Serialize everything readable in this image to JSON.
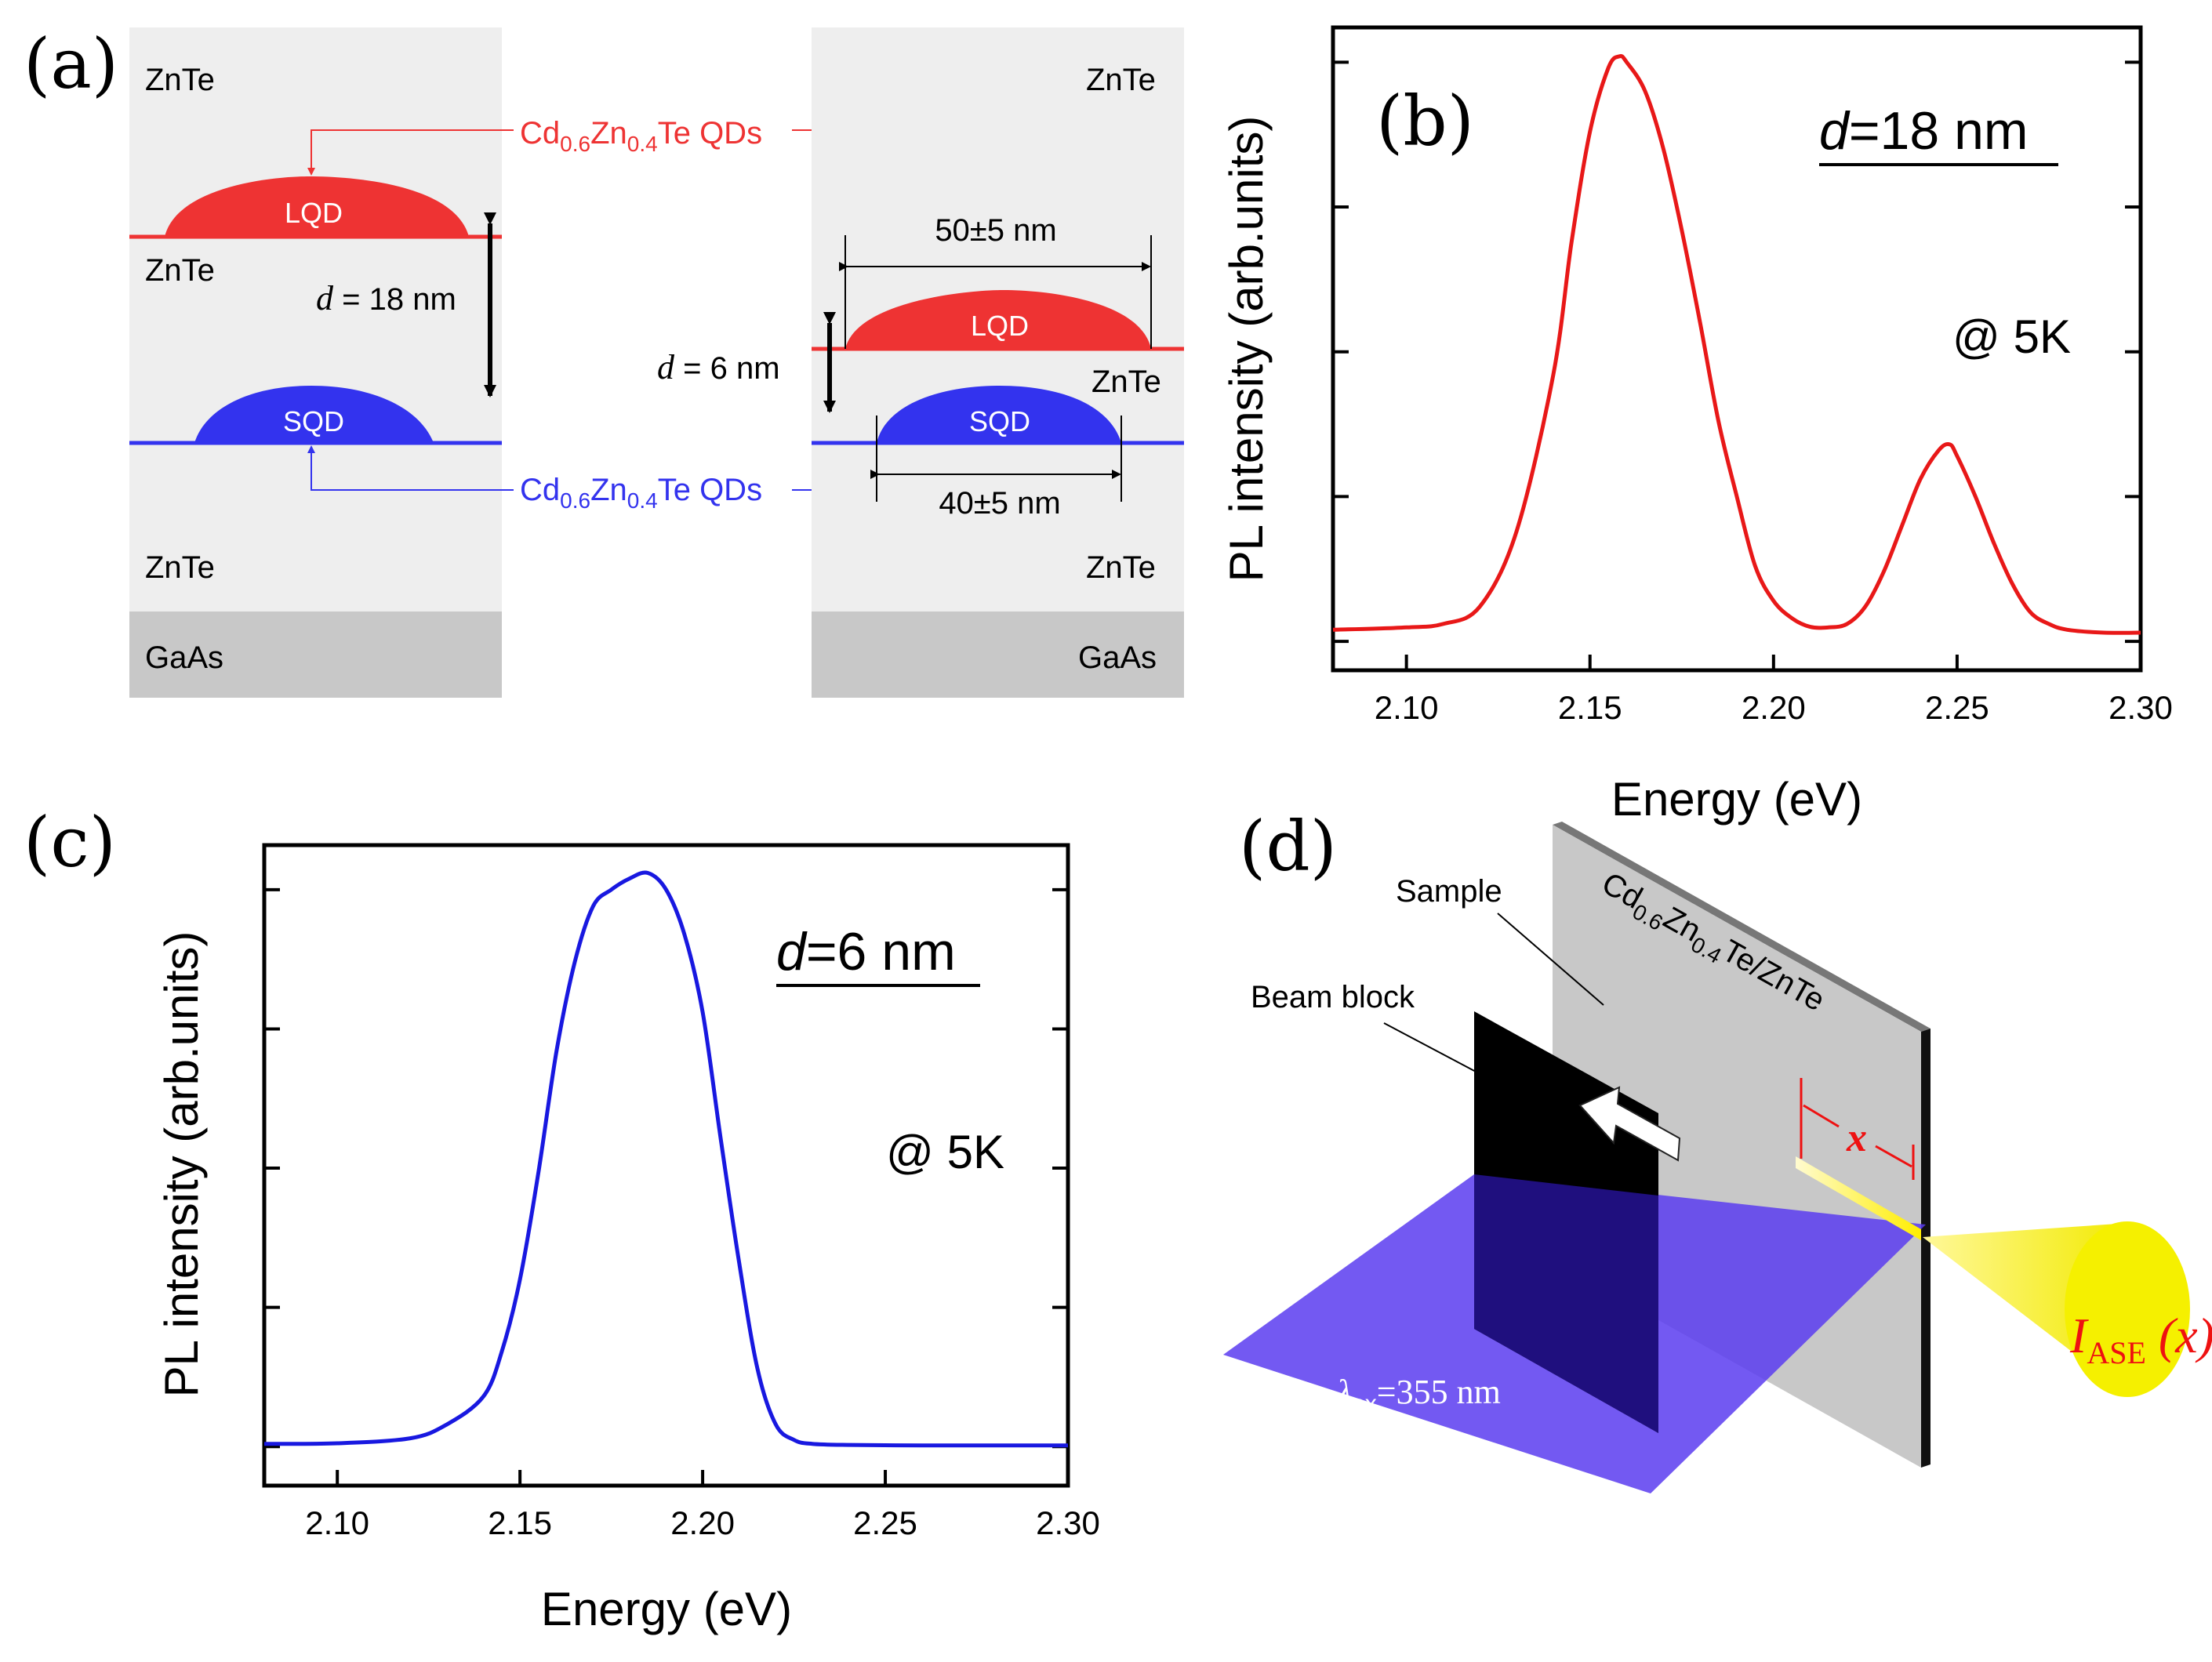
{
  "panels": {
    "a_label": "(a)",
    "b_label": "(b)",
    "c_label": "(c)",
    "d_label": "(d)"
  },
  "diagram_a": {
    "znte": "ZnTe",
    "gaas": "GaAs",
    "lqd": "LQD",
    "sqd": "SQD",
    "qd_label": {
      "pre": "Cd",
      "sub1": "0.6",
      "mid": "Zn",
      "sub2": "0.4",
      "post": "Te QDs"
    },
    "d_italic": "d",
    "left_spacing": " = 18 nm",
    "right_spacing": " = 6 nm",
    "lqd_width": "50±5 nm",
    "sqd_width": "40±5 nm",
    "colors": {
      "red": "#ee3333",
      "blue": "#3333ee",
      "layer": "#eeeeee",
      "substrate": "#c8c8c8"
    }
  },
  "chart_b": {
    "d_italic": "d",
    "title_rest": "=18 nm",
    "note": "@ 5K",
    "color": "#e81818"
  },
  "chart_c": {
    "d_italic": "d",
    "title_rest": "=6 nm",
    "note": "@ 5K",
    "color": "#1818e0"
  },
  "chart_data": [
    {
      "type": "line",
      "title": "d=18 nm",
      "xlabel": "Energy (eV)",
      "ylabel": "PL intensity (arb.units)",
      "xlim": [
        2.08,
        2.3
      ],
      "ylim": [
        -0.05,
        1.06
      ],
      "xticks": [
        "2.10",
        "2.15",
        "2.20",
        "2.25",
        "2.30"
      ],
      "annotation": "@ 5K",
      "series": [
        {
          "name": "PL",
          "x": [
            2.08,
            2.1,
            2.11,
            2.12,
            2.13,
            2.14,
            2.145,
            2.15,
            2.155,
            2.158,
            2.16,
            2.165,
            2.17,
            2.175,
            2.18,
            2.185,
            2.19,
            2.195,
            2.2,
            2.205,
            2.21,
            2.215,
            2.22,
            2.225,
            2.23,
            2.235,
            2.24,
            2.245,
            2.248,
            2.25,
            2.255,
            2.26,
            2.265,
            2.27,
            2.275,
            2.28,
            2.29,
            2.3
          ],
          "y": [
            0.02,
            0.024,
            0.03,
            0.06,
            0.19,
            0.46,
            0.69,
            0.88,
            0.99,
            1.01,
            1.0,
            0.95,
            0.85,
            0.71,
            0.55,
            0.38,
            0.25,
            0.13,
            0.07,
            0.04,
            0.025,
            0.024,
            0.03,
            0.06,
            0.12,
            0.2,
            0.28,
            0.33,
            0.34,
            0.32,
            0.25,
            0.17,
            0.1,
            0.05,
            0.03,
            0.02,
            0.015,
            0.015
          ]
        }
      ]
    },
    {
      "type": "line",
      "title": "d=6 nm",
      "xlabel": "Energy (eV)",
      "ylabel": "PL intensity (arb.units)",
      "xlim": [
        2.08,
        2.3
      ],
      "ylim": [
        -0.07,
        1.08
      ],
      "xticks": [
        "2.10",
        "2.15",
        "2.20",
        "2.25",
        "2.30"
      ],
      "annotation": "@ 5K",
      "series": [
        {
          "name": "PL",
          "x": [
            2.08,
            2.1,
            2.12,
            2.13,
            2.14,
            2.145,
            2.15,
            2.155,
            2.16,
            2.165,
            2.17,
            2.175,
            2.18,
            2.185,
            2.19,
            2.195,
            2.2,
            2.205,
            2.21,
            2.215,
            2.22,
            2.225,
            2.23,
            2.24,
            2.26,
            2.28,
            2.3
          ],
          "y": [
            0.005,
            0.006,
            0.015,
            0.04,
            0.09,
            0.17,
            0.3,
            0.49,
            0.71,
            0.87,
            0.97,
            1.0,
            1.02,
            1.03,
            1.0,
            0.92,
            0.78,
            0.55,
            0.33,
            0.14,
            0.04,
            0.012,
            0.005,
            0.003,
            0.002,
            0.002,
            0.002
          ]
        }
      ]
    }
  ],
  "diagram_d": {
    "sample": "Sample",
    "beam_block": "Beam block",
    "film": {
      "pre": "Cd",
      "sub1": "0.6",
      "mid": "Zn",
      "sub2": "0.4",
      "post": "Te/ZnTe"
    },
    "x_label": "x",
    "lambda": {
      "sym": "λ",
      "sub": "ex",
      "val": "=355 nm"
    },
    "iase": {
      "I": "I",
      "sub": "ASE",
      "arg": " (x)"
    },
    "colors": {
      "beam": "#5a3cf0",
      "cone": "#f5f000",
      "panel": "#c8c8c8"
    }
  }
}
